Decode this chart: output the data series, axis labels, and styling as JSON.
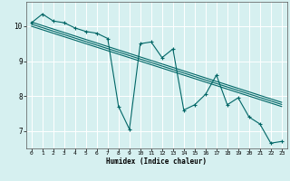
{
  "xlabel": "Humidex (Indice chaleur)",
  "ylabel": "",
  "bg_color": "#d6f0f0",
  "grid_color": "#ffffff",
  "grid_minor_color": "#e8f8f8",
  "line_color": "#006666",
  "x_humidex": [
    0,
    1,
    2,
    3,
    4,
    5,
    6,
    7,
    8,
    9,
    10,
    11,
    12,
    13,
    14,
    15,
    16,
    17,
    18,
    19,
    20,
    21,
    22,
    23
  ],
  "series1": [
    10.1,
    10.35,
    10.15,
    10.1,
    9.95,
    9.85,
    9.8,
    9.65,
    7.7,
    7.05,
    9.5,
    9.55,
    9.1,
    9.35,
    7.6,
    7.75,
    8.05,
    8.6,
    7.75,
    7.95,
    7.4,
    7.2,
    6.65,
    6.7
  ],
  "trend1": [
    10.12,
    10.02,
    9.92,
    9.82,
    9.72,
    9.62,
    9.52,
    9.42,
    9.32,
    9.22,
    9.12,
    9.02,
    8.92,
    8.82,
    8.72,
    8.62,
    8.52,
    8.42,
    8.32,
    8.22,
    8.12,
    8.02,
    7.92,
    7.82
  ],
  "trend2": [
    10.06,
    9.96,
    9.86,
    9.76,
    9.66,
    9.56,
    9.46,
    9.36,
    9.26,
    9.16,
    9.06,
    8.96,
    8.86,
    8.76,
    8.66,
    8.56,
    8.46,
    8.36,
    8.26,
    8.16,
    8.06,
    7.96,
    7.86,
    7.76
  ],
  "trend3": [
    10.0,
    9.9,
    9.8,
    9.7,
    9.6,
    9.5,
    9.4,
    9.3,
    9.2,
    9.1,
    9.0,
    8.9,
    8.8,
    8.7,
    8.6,
    8.5,
    8.4,
    8.3,
    8.2,
    8.1,
    8.0,
    7.9,
    7.8,
    7.7
  ],
  "ylim": [
    6.5,
    10.7
  ],
  "xlim": [
    -0.5,
    23.5
  ],
  "yticks": [
    7,
    8,
    9,
    10
  ],
  "xticks": [
    0,
    1,
    2,
    3,
    4,
    5,
    6,
    7,
    8,
    9,
    10,
    11,
    12,
    13,
    14,
    15,
    16,
    17,
    18,
    19,
    20,
    21,
    22,
    23
  ]
}
